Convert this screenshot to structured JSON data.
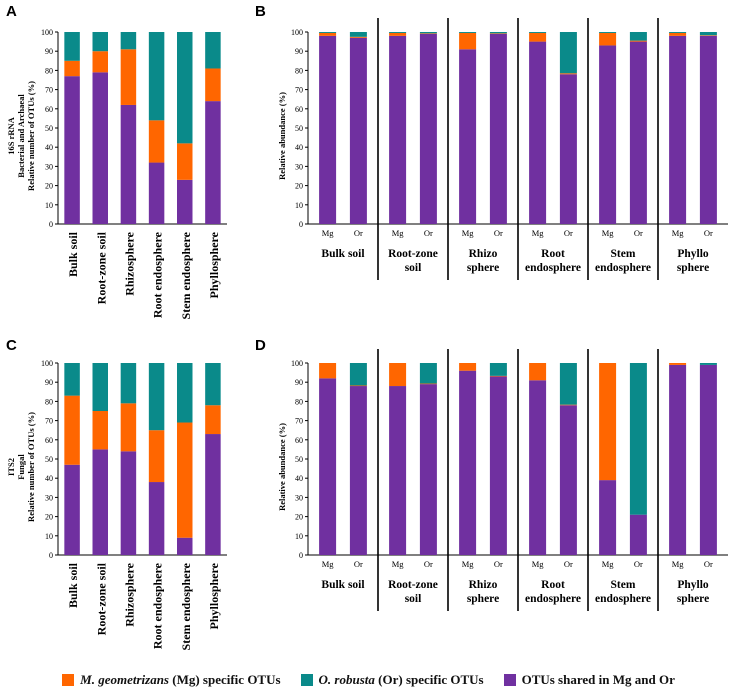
{
  "colors": {
    "mg": "#ff6600",
    "or": "#0a8a8a",
    "shared": "#7030a0"
  },
  "legend": {
    "mg_species": "M. geometrizans",
    "mg_rest": " (Mg) specific OTUs",
    "or_species": "O. robusta",
    "or_rest": " (Or) specific OTUs",
    "shared": "OTUs shared in Mg and Or"
  },
  "chart_data": [
    {
      "panel": "A",
      "type": "bar",
      "stacked": true,
      "ylabel_lines": [
        "16S rRNA",
        "Bacterial and Archaeal",
        "Relative number of OTUs (%)"
      ],
      "ylim": [
        0,
        100
      ],
      "yticks": [
        "0",
        "10",
        "20",
        "30",
        "40",
        "50",
        "60",
        "70",
        "80",
        "90",
        "100"
      ],
      "categories": [
        "Bulk soil",
        "Root-zone soil",
        "Rhizosphere",
        "Root endosphere",
        "Stem endosphere",
        "Phyllosphere"
      ],
      "series": [
        {
          "name": "shared",
          "values": [
            77,
            79,
            62,
            32,
            23,
            64
          ]
        },
        {
          "name": "mg",
          "values": [
            8,
            11,
            29,
            22,
            19,
            17
          ]
        },
        {
          "name": "or",
          "values": [
            15,
            10,
            9,
            46,
            58,
            19
          ]
        }
      ]
    },
    {
      "panel": "B",
      "type": "bar",
      "stacked": true,
      "ylabel_lines": [
        "Relative abundance (%)"
      ],
      "ylim": [
        0,
        100
      ],
      "yticks": [
        "0",
        "10",
        "20",
        "30",
        "40",
        "50",
        "60",
        "70",
        "80",
        "90",
        "100"
      ],
      "bar_labels": [
        "Mg",
        "Or"
      ],
      "groups": [
        {
          "label_lines": [
            "Bulk soil"
          ],
          "shared": [
            98,
            97
          ],
          "mg": [
            1.5,
            0.5
          ],
          "or": [
            0.5,
            2.5
          ]
        },
        {
          "label_lines": [
            "Root-zone",
            "soil"
          ],
          "shared": [
            98,
            99
          ],
          "mg": [
            1.5,
            0.3
          ],
          "or": [
            0.5,
            0.7
          ]
        },
        {
          "label_lines": [
            "Rhizo",
            "sphere"
          ],
          "shared": [
            91,
            99
          ],
          "mg": [
            8.5,
            0.3
          ],
          "or": [
            0.5,
            0.7
          ]
        },
        {
          "label_lines": [
            "Root",
            "endosphere"
          ],
          "shared": [
            95,
            78
          ],
          "mg": [
            4.5,
            0.5
          ],
          "or": [
            0.5,
            21.5
          ]
        },
        {
          "label_lines": [
            "Stem",
            "endosphere"
          ],
          "shared": [
            93,
            95
          ],
          "mg": [
            6.5,
            0.5
          ],
          "or": [
            0.5,
            4.5
          ]
        },
        {
          "label_lines": [
            "Phyllo",
            "sphere"
          ],
          "shared": [
            98,
            98
          ],
          "mg": [
            1.5,
            0.3
          ],
          "or": [
            0.5,
            1.7
          ]
        }
      ]
    },
    {
      "panel": "C",
      "type": "bar",
      "stacked": true,
      "ylabel_lines": [
        "ITS2",
        "Fungal",
        "Relative number of OTUs (%)"
      ],
      "ylim": [
        0,
        100
      ],
      "yticks": [
        "0",
        "10",
        "20",
        "30",
        "40",
        "50",
        "60",
        "70",
        "80",
        "90",
        "100"
      ],
      "categories": [
        "Bulk soil",
        "Root-zone soil",
        "Rhizosphere",
        "Root endosphere",
        "Stem endosphere",
        "Phyllosphere"
      ],
      "series": [
        {
          "name": "shared",
          "values": [
            47,
            55,
            54,
            38,
            9,
            63
          ]
        },
        {
          "name": "mg",
          "values": [
            36,
            20,
            25,
            27,
            60,
            15
          ]
        },
        {
          "name": "or",
          "values": [
            17,
            25,
            21,
            35,
            31,
            22
          ]
        }
      ]
    },
    {
      "panel": "D",
      "type": "bar",
      "stacked": true,
      "ylabel_lines": [
        "Relative abundance (%)"
      ],
      "ylim": [
        0,
        100
      ],
      "yticks": [
        "0",
        "10",
        "20",
        "30",
        "40",
        "50",
        "60",
        "70",
        "80",
        "90",
        "100"
      ],
      "bar_labels": [
        "Mg",
        "Or"
      ],
      "groups": [
        {
          "label_lines": [
            "Bulk soil"
          ],
          "shared": [
            92,
            88
          ],
          "mg": [
            8,
            0.3
          ],
          "or": [
            0,
            11.7
          ]
        },
        {
          "label_lines": [
            "Root-zone",
            "soil"
          ],
          "shared": [
            88,
            89
          ],
          "mg": [
            12,
            0.3
          ],
          "or": [
            0,
            10.7
          ]
        },
        {
          "label_lines": [
            "Rhizo",
            "sphere"
          ],
          "shared": [
            96,
            93
          ],
          "mg": [
            4,
            0.3
          ],
          "or": [
            0,
            6.7
          ]
        },
        {
          "label_lines": [
            "Root",
            "endosphere"
          ],
          "shared": [
            91,
            78
          ],
          "mg": [
            9,
            0.3
          ],
          "or": [
            0,
            21.7
          ]
        },
        {
          "label_lines": [
            "Stem",
            "endosphere"
          ],
          "shared": [
            39,
            21
          ],
          "mg": [
            61,
            0
          ],
          "or": [
            0,
            79
          ]
        },
        {
          "label_lines": [
            "Phyllo",
            "sphere"
          ],
          "shared": [
            99,
            99
          ],
          "mg": [
            1,
            0
          ],
          "or": [
            0,
            1
          ]
        }
      ]
    }
  ]
}
